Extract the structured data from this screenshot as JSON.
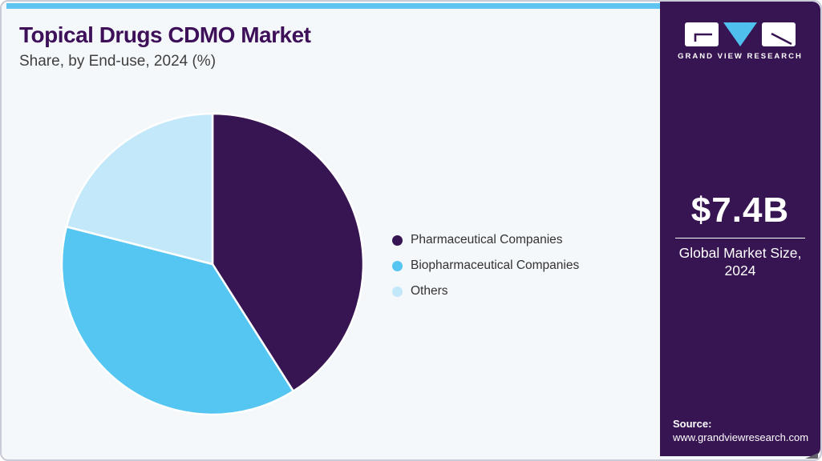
{
  "header": {
    "title": "Topical Drugs CDMO Market",
    "subtitle": "Share, by End-use, 2024 (%)"
  },
  "chart_data": {
    "type": "pie",
    "title": "Topical Drugs CDMO Market Share, by End-use, 2024 (%)",
    "units": "percent of market share",
    "start_angle_deg_from_top": 0,
    "direction": "clockwise",
    "legend_position": "right",
    "slices": [
      {
        "label": "Pharmaceutical Companies",
        "value": 41,
        "color": "#371452"
      },
      {
        "label": "Biopharmaceutical Companies",
        "value": 38,
        "color": "#55C6F2"
      },
      {
        "label": "Others",
        "value": 21,
        "color": "#C2E8FA"
      }
    ]
  },
  "sidebar": {
    "brand_name": "GRAND VIEW RESEARCH",
    "market_size_value": "$7.4B",
    "market_size_label": "Global Market Size, 2024",
    "source_label": "Source:",
    "source_url": "www.grandviewresearch.com"
  },
  "theme": {
    "accent_strip": "#5FC5F0",
    "card_background": "#F4F8FB",
    "card_border": "#C9CCD6",
    "sidebar_background": "#371452",
    "title_color": "#3D1059",
    "subtitle_color": "#3F3F3F",
    "legend_text_color": "#333333",
    "sidebar_text_color": "#FFFFFF",
    "logo_triangle_blue": "#4FC0ED"
  }
}
